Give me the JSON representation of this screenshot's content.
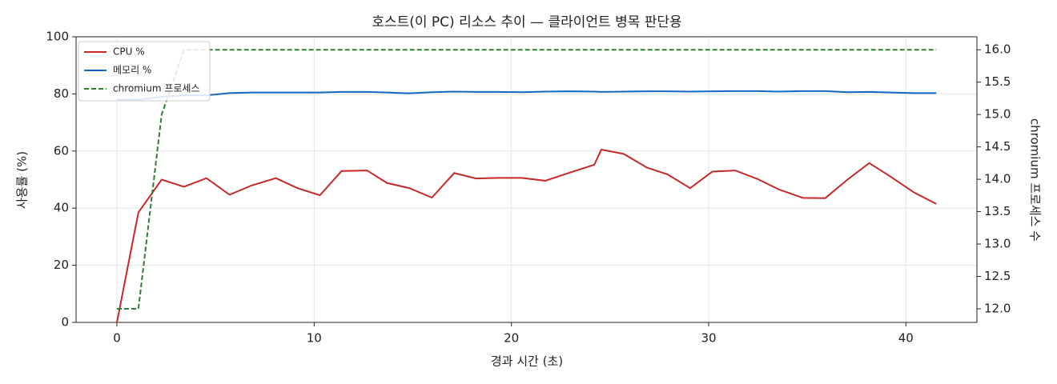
{
  "chart_data": {
    "type": "line",
    "title": "호스트(이 PC) 리소스 추이 — 클라이언트 병목 판단용",
    "xlabel": "경과 시간 (초)",
    "ylabel": "사용률 (%)",
    "y2label": "chromium 프로세스 수",
    "x": [
      0,
      1.09,
      2.27,
      3.4,
      4.54,
      5.71,
      6.85,
      8.06,
      9.16,
      10.29,
      11.39,
      12.68,
      13.7,
      14.83,
      15.97,
      17.1,
      18.2,
      19.33,
      20.51,
      21.72,
      22.94,
      24.2,
      24.56,
      25.69,
      26.87,
      27.92,
      29.06,
      30.19,
      31.35,
      32.48,
      33.54,
      34.77,
      35.91,
      37.04,
      38.14,
      39.23,
      40.41,
      41.54
    ],
    "series": [
      {
        "name": "CPU %",
        "color": "#c62828",
        "dash": false,
        "axis": "y",
        "values": [
          0,
          38.5,
          50,
          47.5,
          50.5,
          44.7,
          48,
          50.5,
          47,
          44.5,
          53,
          53.2,
          48.8,
          47,
          43.7,
          52.3,
          50.4,
          50.6,
          50.6,
          49.6,
          52.4,
          55.2,
          60.5,
          59,
          54.2,
          51.8,
          47,
          52.8,
          53.2,
          50.2,
          46.6,
          43.6,
          43.5,
          50,
          55.8,
          51,
          45.5,
          41.5
        ]
      },
      {
        "name": "메모리 %",
        "color": "#1565c0",
        "dash": false,
        "axis": "y",
        "values": [
          78,
          78,
          79,
          79.5,
          79.5,
          80.3,
          80.5,
          80.5,
          80.5,
          80.5,
          80.7,
          80.7,
          80.5,
          80.2,
          80.6,
          80.8,
          80.7,
          80.7,
          80.6,
          80.8,
          80.9,
          80.8,
          80.7,
          80.8,
          80.9,
          80.9,
          80.8,
          80.9,
          81,
          81,
          80.8,
          81,
          81,
          80.6,
          80.7,
          80.5,
          80.3,
          80.3
        ]
      },
      {
        "name": "chromium 프로세스",
        "color": "#2e7d32",
        "dash": true,
        "axis": "y2",
        "values": [
          12,
          12,
          15,
          16,
          16,
          16,
          16,
          16,
          16,
          16,
          16,
          16,
          16,
          16,
          16,
          16,
          16,
          16,
          16,
          16,
          16,
          16,
          16,
          16,
          16,
          16,
          16,
          16,
          16,
          16,
          16,
          16,
          16,
          16,
          16,
          16,
          16,
          16
        ]
      }
    ],
    "xlim": [
      -2.07,
      43.6
    ],
    "xticks": [
      0,
      10,
      20,
      30,
      40
    ],
    "ylim": [
      0,
      100
    ],
    "yticks": [
      0,
      20,
      40,
      60,
      80,
      100
    ],
    "y2lim": [
      11.79,
      16.2
    ],
    "y2ticks": [
      {
        "value": 12,
        "label": "12.0"
      },
      12.5,
      {
        "value": 13,
        "label": "13.0"
      },
      13.5,
      {
        "value": 14,
        "label": "14.0"
      },
      14.5,
      {
        "value": 15,
        "label": "15.0"
      },
      15.5,
      {
        "value": 16,
        "label": "16.0"
      }
    ],
    "grid": true,
    "legend": "upper-left"
  }
}
